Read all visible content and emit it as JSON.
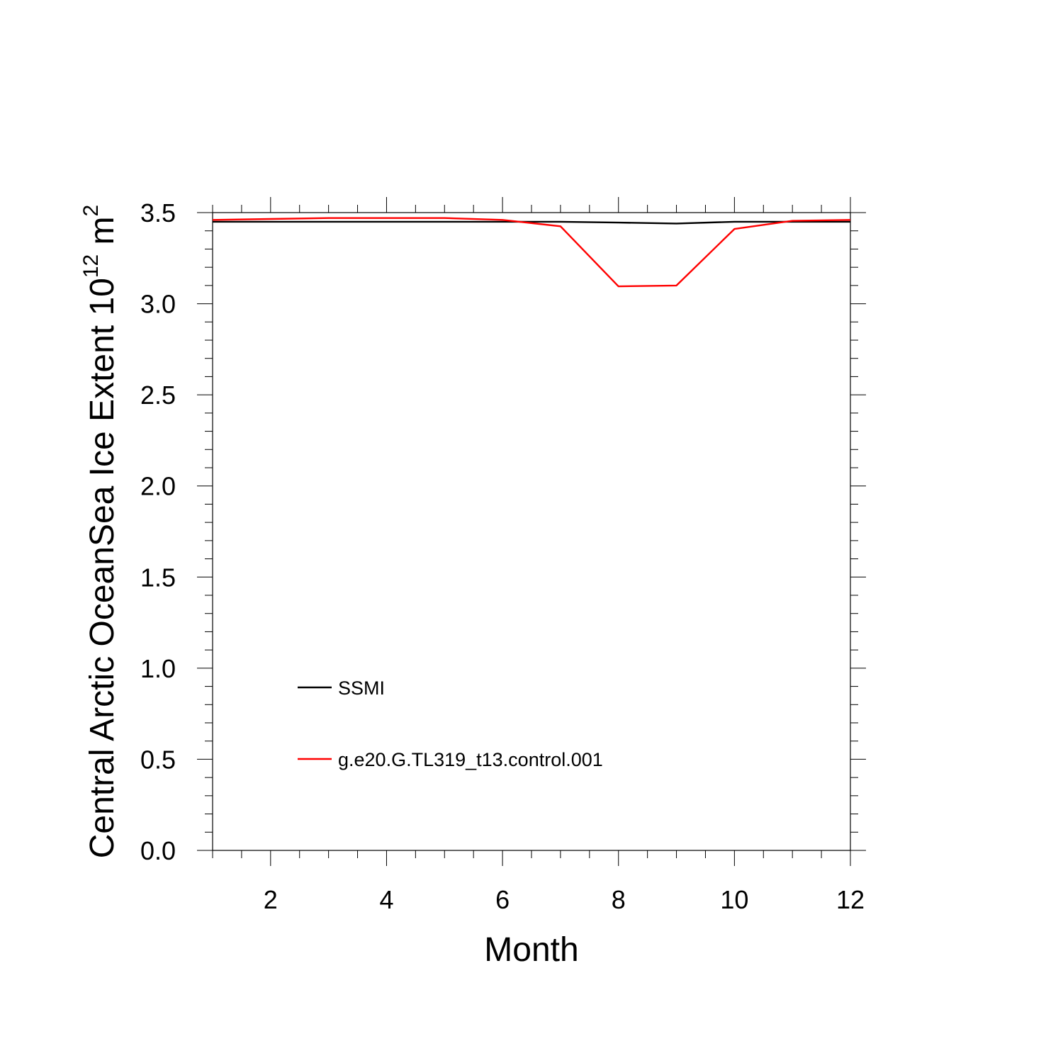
{
  "chart_data": {
    "type": "line",
    "title": "",
    "xlabel": "Month",
    "ylabel": {
      "main": "Central Arctic OceanSea Ice Extent 10",
      "exp1": "12",
      "unit": " m",
      "exp2": "2"
    },
    "xlim": [
      1,
      12
    ],
    "ylim": [
      0,
      3.5
    ],
    "x_ticks": [
      2,
      4,
      6,
      8,
      10,
      12
    ],
    "x_tick_labels": [
      "2",
      "4",
      "6",
      "8",
      "10",
      "12"
    ],
    "y_ticks": [
      0,
      0.5,
      1.0,
      1.5,
      2.0,
      2.5,
      3.0,
      3.5
    ],
    "y_tick_labels": [
      "0.0",
      "0.5",
      "1.0",
      "1.5",
      "2.0",
      "2.5",
      "3.0",
      "3.5"
    ],
    "x": [
      1,
      2,
      3,
      4,
      5,
      6,
      7,
      8,
      9,
      10,
      11,
      12
    ],
    "series": [
      {
        "name": "SSMI",
        "color": "#000000",
        "values": [
          3.45,
          3.45,
          3.45,
          3.45,
          3.45,
          3.45,
          3.45,
          3.445,
          3.44,
          3.45,
          3.45,
          3.45
        ]
      },
      {
        "name": "g.e20.G.TL319_t13.control.001",
        "color": "#ff0000",
        "values": [
          3.46,
          3.465,
          3.47,
          3.47,
          3.47,
          3.46,
          3.425,
          3.095,
          3.1,
          3.41,
          3.455,
          3.46
        ]
      }
    ],
    "legend": "lower-left inside",
    "grid": false
  }
}
